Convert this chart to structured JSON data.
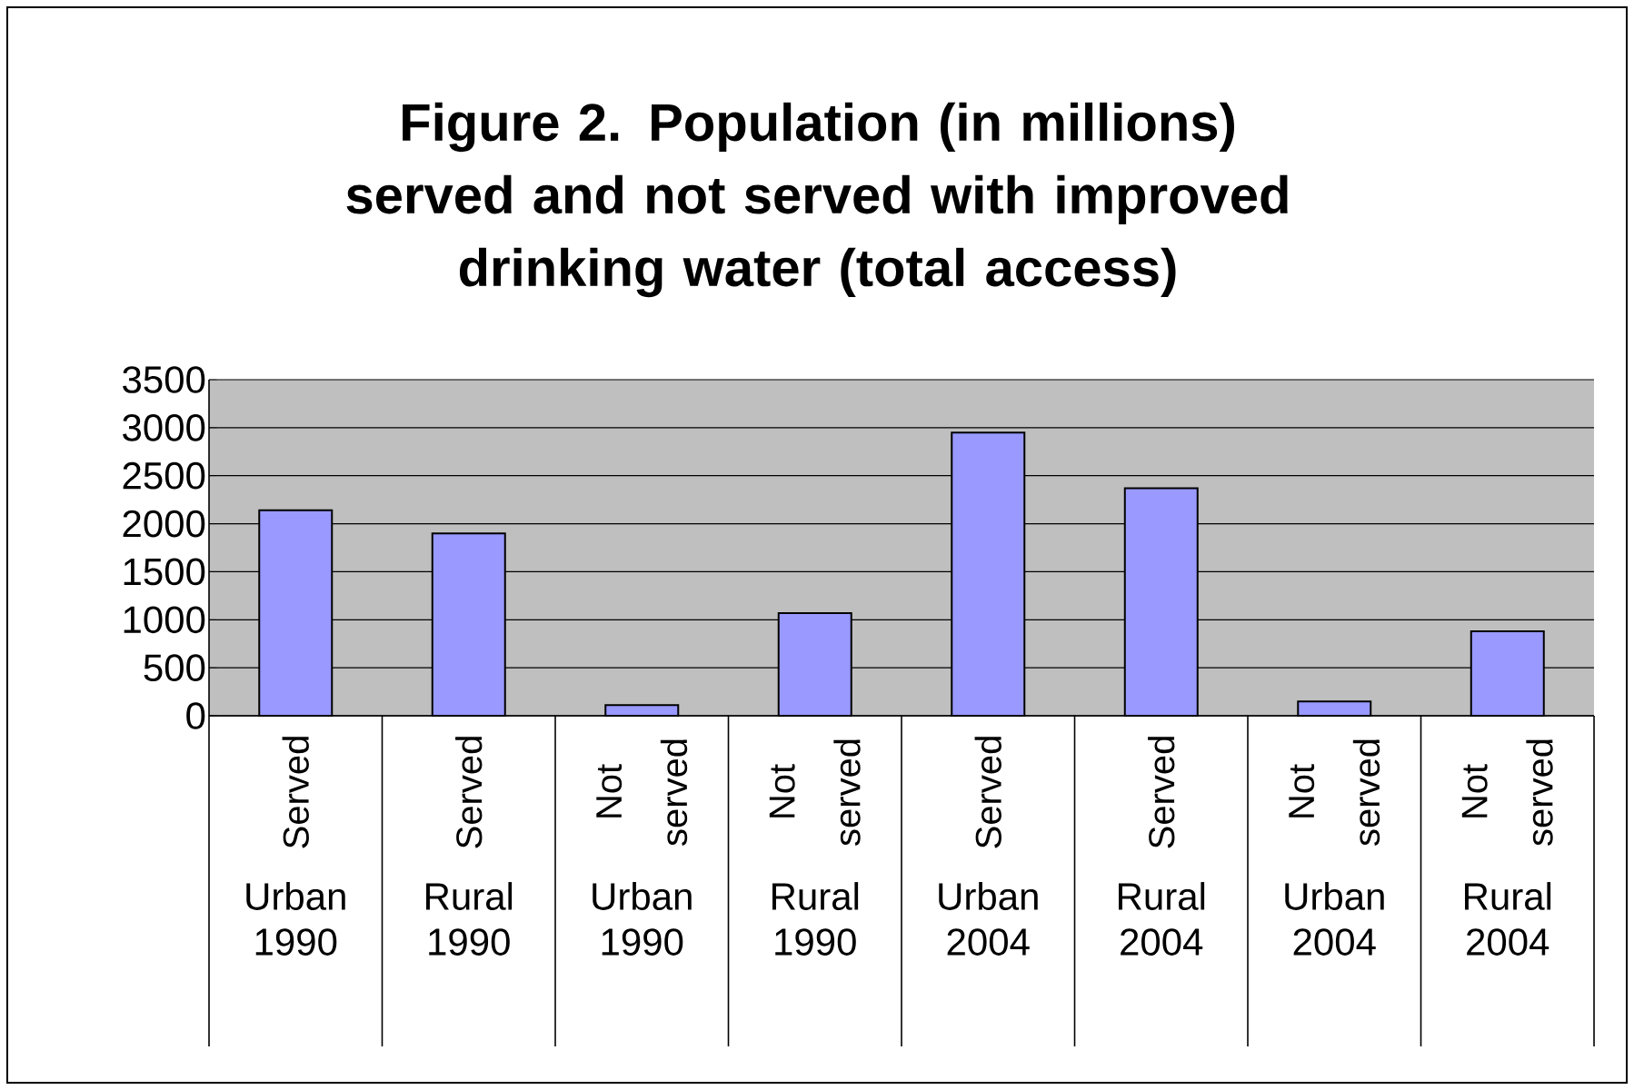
{
  "chart_data": {
    "type": "bar",
    "title": "Figure 2. Population (in millions) served and not served with improved drinking water (total access)",
    "categories": [
      "Urban 1990",
      "Rural 1990",
      "Urban 1990",
      "Rural 1990",
      "Urban 2004",
      "Rural 2004",
      "Urban 2004",
      "Rural 2004"
    ],
    "values": [
      2140,
      1900,
      110,
      1070,
      2950,
      2370,
      150,
      880
    ],
    "color": "#9999ff",
    "ylim": [
      0,
      3500
    ],
    "yticks": [
      0,
      500,
      1000,
      1500,
      2000,
      2500,
      3000,
      3500
    ],
    "grid": true,
    "annotations": [
      "Served",
      "Served",
      "Not served",
      "Not served",
      "Served",
      "Served",
      "Not served",
      "Not served"
    ]
  }
}
